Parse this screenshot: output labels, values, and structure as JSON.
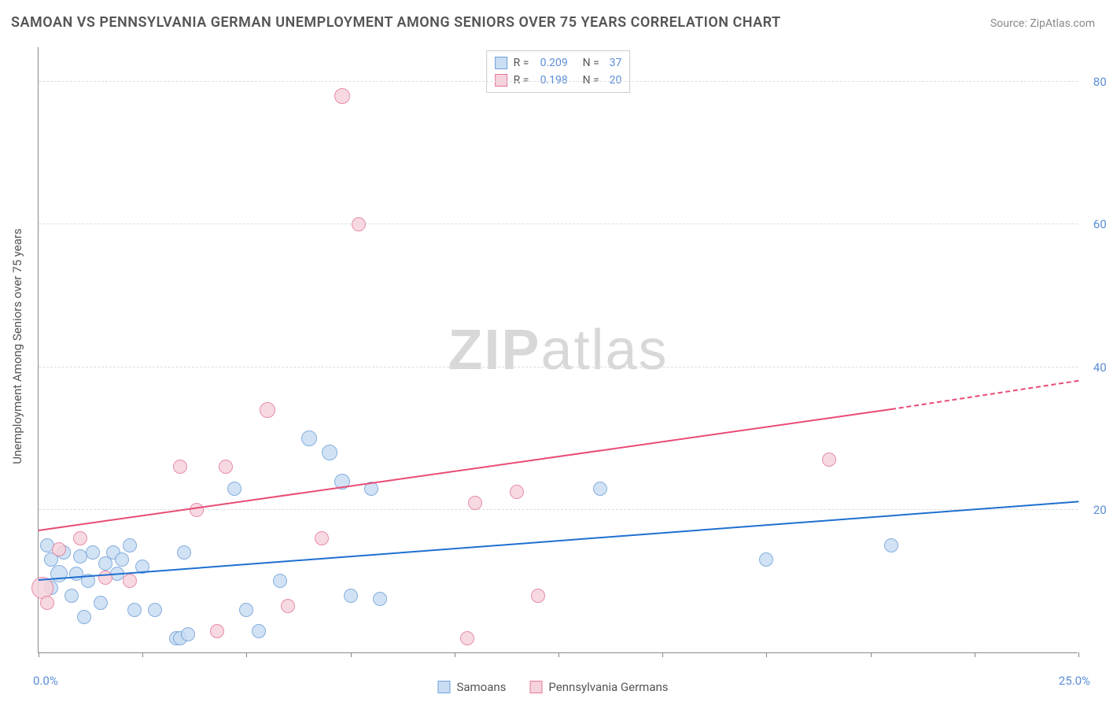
{
  "title": "SAMOAN VS PENNSYLVANIA GERMAN UNEMPLOYMENT AMONG SENIORS OVER 75 YEARS CORRELATION CHART",
  "source": "Source: ZipAtlas.com",
  "ylabel": "Unemployment Among Seniors over 75 years",
  "watermark_bold": "ZIP",
  "watermark_light": "atlas",
  "chart": {
    "type": "scatter",
    "xlim": [
      0,
      25
    ],
    "ylim": [
      0,
      85
    ],
    "xtick_positions": [
      0,
      2.5,
      5,
      7.5,
      10,
      12.5,
      15,
      17.5,
      20,
      22.5,
      25
    ],
    "ytick_positions": [
      20,
      40,
      60,
      80
    ],
    "ytick_labels": [
      "20.0%",
      "40.0%",
      "60.0%",
      "80.0%"
    ],
    "xlabel_min": "0.0%",
    "xlabel_max": "25.0%",
    "background_color": "#ffffff",
    "grid_color": "#dddddd",
    "axis_color": "#888888",
    "text_color": "#555555",
    "value_color": "#5b8dd6",
    "point_radius": 9,
    "point_stroke_width": 1,
    "trend_width": 2
  },
  "series": [
    {
      "name": "Samoans",
      "fill": "#c9ddf3",
      "stroke": "#6fa1d9",
      "line_color": "#1f6fd0",
      "R": "0.209",
      "N": "37",
      "trend": {
        "x1": 0,
        "y1": 10,
        "x2": 25,
        "y2": 21
      },
      "trend_ext": null,
      "points": [
        {
          "x": 0.2,
          "y": 15,
          "r": 9
        },
        {
          "x": 0.3,
          "y": 13,
          "r": 9
        },
        {
          "x": 0.3,
          "y": 9,
          "r": 9
        },
        {
          "x": 0.5,
          "y": 11,
          "r": 11
        },
        {
          "x": 0.6,
          "y": 14,
          "r": 9
        },
        {
          "x": 0.8,
          "y": 8,
          "r": 9
        },
        {
          "x": 0.9,
          "y": 11,
          "r": 9
        },
        {
          "x": 1.0,
          "y": 13.5,
          "r": 9
        },
        {
          "x": 1.1,
          "y": 5,
          "r": 9
        },
        {
          "x": 1.2,
          "y": 10,
          "r": 9
        },
        {
          "x": 1.3,
          "y": 14,
          "r": 9
        },
        {
          "x": 1.5,
          "y": 7,
          "r": 9
        },
        {
          "x": 1.6,
          "y": 12.5,
          "r": 9
        },
        {
          "x": 1.8,
          "y": 14,
          "r": 9
        },
        {
          "x": 1.9,
          "y": 11,
          "r": 9
        },
        {
          "x": 2.0,
          "y": 13,
          "r": 9
        },
        {
          "x": 2.2,
          "y": 15,
          "r": 9
        },
        {
          "x": 2.3,
          "y": 6,
          "r": 9
        },
        {
          "x": 2.5,
          "y": 12,
          "r": 9
        },
        {
          "x": 2.8,
          "y": 6,
          "r": 9
        },
        {
          "x": 3.3,
          "y": 2,
          "r": 9
        },
        {
          "x": 3.4,
          "y": 2,
          "r": 9
        },
        {
          "x": 3.5,
          "y": 14,
          "r": 9
        },
        {
          "x": 3.6,
          "y": 2.5,
          "r": 9
        },
        {
          "x": 4.7,
          "y": 23,
          "r": 9
        },
        {
          "x": 5.0,
          "y": 6,
          "r": 9
        },
        {
          "x": 5.3,
          "y": 3,
          "r": 9
        },
        {
          "x": 5.8,
          "y": 10,
          "r": 9
        },
        {
          "x": 6.5,
          "y": 30,
          "r": 10
        },
        {
          "x": 7.0,
          "y": 28,
          "r": 10
        },
        {
          "x": 7.3,
          "y": 24,
          "r": 10
        },
        {
          "x": 7.5,
          "y": 8,
          "r": 9
        },
        {
          "x": 8.0,
          "y": 23,
          "r": 9
        },
        {
          "x": 8.2,
          "y": 7.5,
          "r": 9
        },
        {
          "x": 17.5,
          "y": 13,
          "r": 9
        },
        {
          "x": 20.5,
          "y": 15,
          "r": 9
        },
        {
          "x": 13.5,
          "y": 23,
          "r": 9
        }
      ]
    },
    {
      "name": "Pennsylvania Germans",
      "fill": "#f6d3dc",
      "stroke": "#e37a99",
      "line_color": "#e94b75",
      "R": "0.198",
      "N": "20",
      "trend": {
        "x1": 0,
        "y1": 17,
        "x2": 20.5,
        "y2": 34
      },
      "trend_ext": {
        "x1": 20.5,
        "y1": 34,
        "x2": 25,
        "y2": 38
      },
      "points": [
        {
          "x": 0.1,
          "y": 9,
          "r": 14
        },
        {
          "x": 0.2,
          "y": 7,
          "r": 9
        },
        {
          "x": 0.5,
          "y": 14.5,
          "r": 9
        },
        {
          "x": 1.0,
          "y": 16,
          "r": 9
        },
        {
          "x": 1.6,
          "y": 10.5,
          "r": 9
        },
        {
          "x": 2.2,
          "y": 10,
          "r": 9
        },
        {
          "x": 3.4,
          "y": 26,
          "r": 9
        },
        {
          "x": 3.8,
          "y": 20,
          "r": 9
        },
        {
          "x": 4.3,
          "y": 3,
          "r": 9
        },
        {
          "x": 4.5,
          "y": 26,
          "r": 9
        },
        {
          "x": 5.5,
          "y": 34,
          "r": 10
        },
        {
          "x": 6.0,
          "y": 6.5,
          "r": 9
        },
        {
          "x": 6.8,
          "y": 16,
          "r": 9
        },
        {
          "x": 7.3,
          "y": 78,
          "r": 10
        },
        {
          "x": 7.7,
          "y": 60,
          "r": 9
        },
        {
          "x": 10.3,
          "y": 2,
          "r": 9
        },
        {
          "x": 10.5,
          "y": 21,
          "r": 9
        },
        {
          "x": 11.5,
          "y": 22.5,
          "r": 9
        },
        {
          "x": 12.0,
          "y": 8,
          "r": 9
        },
        {
          "x": 19.0,
          "y": 27,
          "r": 9
        }
      ]
    }
  ],
  "stat_legend": {
    "R_label": "R =",
    "N_label": "N ="
  },
  "bottom_legend": [
    "Samoans",
    "Pennsylvania Germans"
  ]
}
